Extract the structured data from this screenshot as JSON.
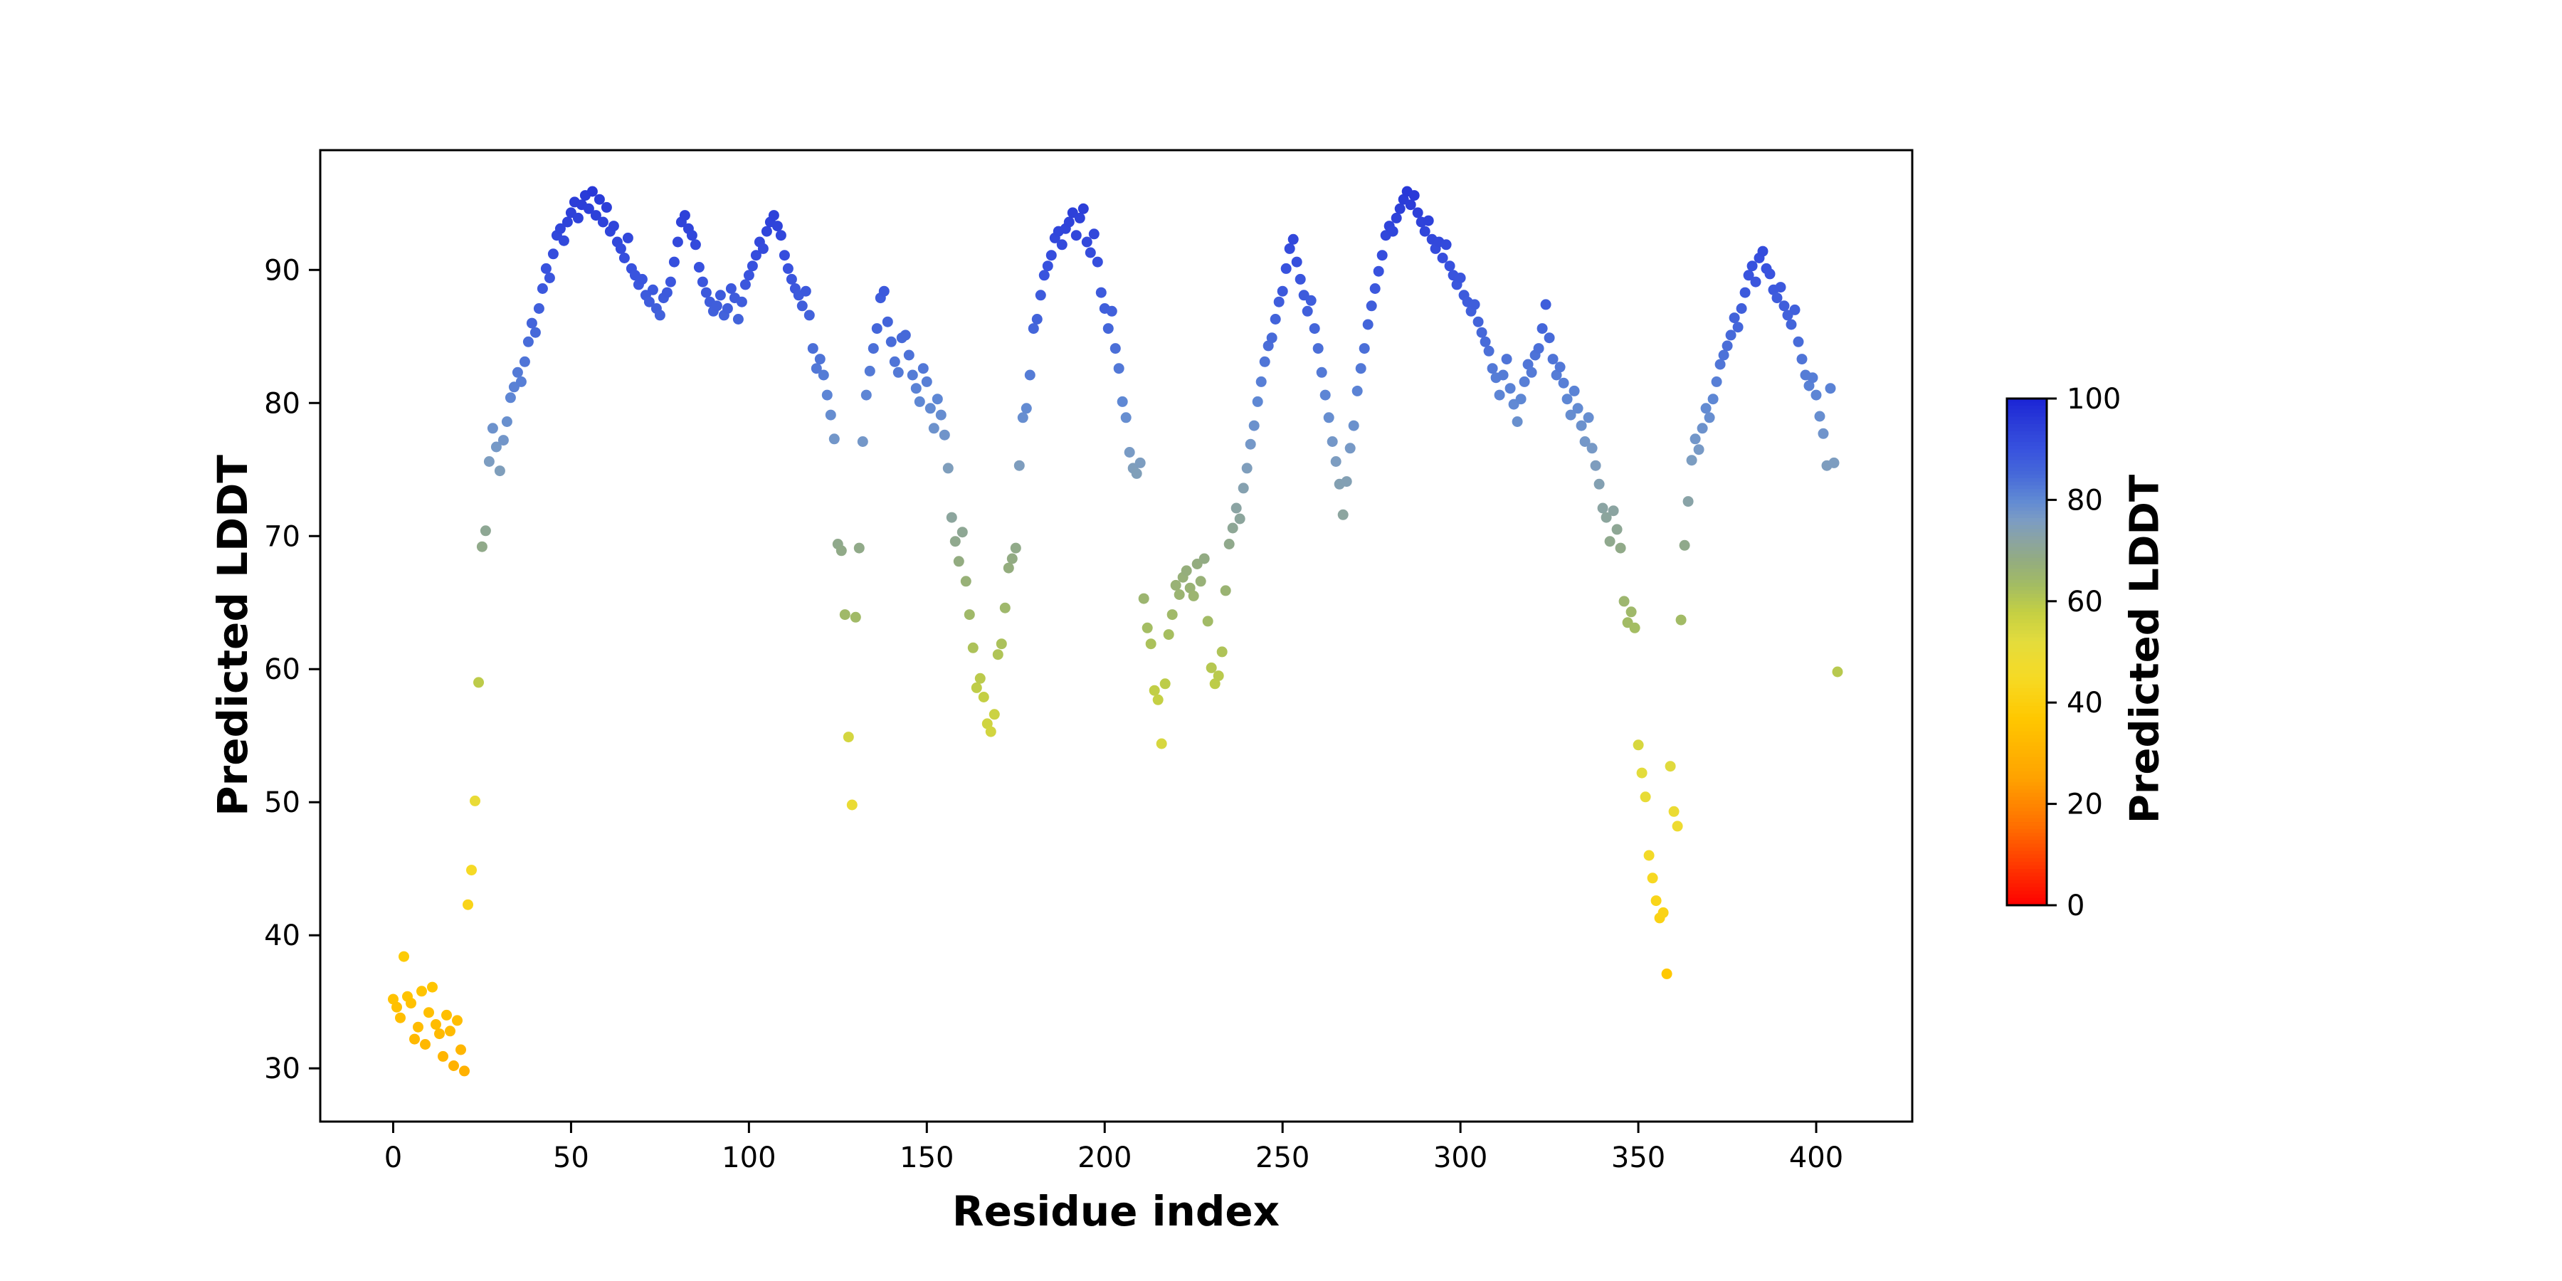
{
  "figure": {
    "background": "#ffffff",
    "text_color": "#000000",
    "spine_color": "#000000"
  },
  "chart_data": {
    "type": "scatter",
    "title": "",
    "xlabel": "Residue index",
    "ylabel": "Predicted LDDT",
    "x_is_index": true,
    "x_ticks": [
      0,
      50,
      100,
      150,
      200,
      250,
      300,
      350,
      400
    ],
    "y_ticks": [
      30,
      40,
      50,
      60,
      70,
      80,
      90
    ],
    "xlim": [
      -20.5,
      427
    ],
    "ylim": [
      26,
      99
    ],
    "grid": false,
    "legend": "none",
    "marker_radius_px": 7.5,
    "color_mapped_by": "y (Predicted LDDT value)",
    "colorbar": {
      "label": "Predicted LDDT",
      "min": 0,
      "max": 100,
      "ticks": [
        0,
        20,
        40,
        60,
        80,
        100
      ],
      "orientation": "vertical"
    },
    "colormap_stops": [
      [
        0,
        "#fe0000"
      ],
      [
        15,
        "#ff6b00"
      ],
      [
        25,
        "#ffa200"
      ],
      [
        37,
        "#ffc800"
      ],
      [
        45,
        "#f6da25"
      ],
      [
        52,
        "#e4dc3c"
      ],
      [
        58,
        "#c3cf44"
      ],
      [
        63,
        "#a4bd62"
      ],
      [
        68,
        "#93ac80"
      ],
      [
        72,
        "#8ba4a2"
      ],
      [
        76,
        "#7b9cc4"
      ],
      [
        80,
        "#6089d4"
      ],
      [
        85,
        "#4669d9"
      ],
      [
        90,
        "#3852de"
      ],
      [
        95,
        "#2b3dd8"
      ],
      [
        100,
        "#1b24d6"
      ]
    ],
    "y": [
      35.2,
      34.6,
      33.8,
      38.4,
      35.4,
      34.9,
      32.2,
      33.1,
      35.8,
      31.8,
      34.2,
      36.1,
      33.3,
      32.6,
      30.9,
      34.0,
      32.8,
      30.2,
      33.6,
      31.4,
      29.8,
      42.3,
      44.9,
      50.1,
      59.0,
      69.2,
      70.4,
      75.6,
      78.1,
      76.7,
      74.9,
      77.2,
      78.6,
      80.4,
      81.2,
      82.3,
      81.6,
      83.1,
      84.6,
      86.0,
      85.3,
      87.1,
      88.6,
      90.1,
      89.4,
      91.2,
      92.6,
      93.1,
      92.2,
      93.6,
      94.3,
      95.1,
      93.9,
      94.9,
      95.6,
      94.6,
      95.9,
      94.1,
      95.3,
      93.6,
      94.7,
      92.9,
      93.3,
      92.1,
      91.6,
      90.9,
      92.4,
      90.1,
      89.6,
      88.9,
      89.3,
      88.1,
      87.6,
      88.5,
      87.1,
      86.6,
      87.9,
      88.3,
      89.1,
      90.6,
      92.1,
      93.6,
      94.1,
      93.1,
      92.6,
      91.9,
      90.2,
      89.1,
      88.3,
      87.6,
      86.9,
      87.3,
      88.1,
      86.6,
      87.1,
      88.6,
      87.9,
      86.3,
      87.6,
      88.9,
      89.6,
      90.3,
      91.1,
      92.1,
      91.6,
      92.9,
      93.6,
      94.1,
      93.3,
      92.6,
      91.1,
      90.1,
      89.3,
      88.6,
      88.1,
      87.3,
      88.4,
      86.6,
      84.1,
      82.6,
      83.3,
      82.1,
      80.6,
      79.1,
      77.3,
      69.4,
      68.9,
      64.1,
      54.9,
      49.8,
      63.9,
      69.1,
      77.1,
      80.6,
      82.4,
      84.1,
      85.6,
      87.9,
      88.4,
      86.1,
      84.6,
      83.1,
      82.3,
      84.9,
      85.1,
      83.6,
      82.1,
      81.1,
      80.1,
      82.6,
      81.6,
      79.6,
      78.1,
      80.3,
      79.1,
      77.6,
      75.1,
      71.4,
      69.6,
      68.1,
      70.3,
      66.6,
      64.1,
      61.6,
      58.6,
      59.3,
      57.9,
      55.9,
      55.3,
      56.6,
      61.1,
      61.9,
      64.6,
      67.6,
      68.3,
      69.1,
      75.3,
      78.9,
      79.6,
      82.1,
      85.6,
      86.3,
      88.1,
      89.6,
      90.3,
      91.1,
      92.4,
      92.9,
      91.9,
      93.1,
      93.6,
      94.3,
      92.6,
      93.9,
      94.6,
      92.1,
      91.3,
      92.7,
      90.6,
      88.3,
      87.1,
      85.6,
      86.9,
      84.1,
      82.6,
      80.1,
      78.9,
      76.3,
      75.1,
      74.7,
      75.5,
      65.3,
      63.1,
      61.9,
      58.4,
      57.7,
      54.4,
      58.9,
      62.6,
      64.1,
      66.3,
      65.6,
      66.9,
      67.4,
      66.1,
      65.5,
      67.9,
      66.6,
      68.3,
      63.6,
      60.1,
      58.9,
      59.5,
      61.3,
      65.9,
      69.4,
      70.6,
      72.1,
      71.3,
      73.6,
      75.1,
      76.9,
      78.3,
      80.1,
      81.6,
      83.1,
      84.3,
      84.9,
      86.3,
      87.6,
      88.4,
      90.1,
      91.6,
      92.3,
      90.6,
      89.3,
      88.1,
      86.9,
      87.7,
      85.6,
      84.1,
      82.3,
      80.6,
      78.9,
      77.1,
      75.6,
      73.9,
      71.6,
      74.1,
      76.6,
      78.3,
      80.9,
      82.6,
      84.1,
      85.9,
      87.3,
      88.6,
      89.9,
      91.1,
      92.6,
      93.3,
      92.9,
      93.9,
      94.6,
      95.3,
      95.9,
      94.9,
      95.6,
      94.3,
      93.6,
      92.9,
      93.7,
      92.3,
      91.6,
      92.1,
      90.9,
      91.9,
      90.3,
      89.6,
      88.9,
      89.4,
      88.1,
      87.6,
      86.9,
      87.4,
      86.1,
      85.3,
      84.6,
      83.9,
      82.6,
      81.9,
      80.6,
      82.1,
      83.3,
      81.1,
      79.9,
      78.6,
      80.3,
      81.6,
      82.9,
      82.3,
      83.6,
      84.1,
      85.6,
      87.4,
      84.9,
      83.3,
      82.1,
      82.7,
      81.5,
      80.3,
      79.1,
      80.9,
      79.6,
      78.3,
      77.1,
      78.9,
      76.6,
      75.3,
      73.9,
      72.1,
      71.4,
      69.6,
      71.9,
      70.5,
      69.1,
      65.1,
      63.5,
      64.3,
      63.1,
      54.3,
      52.2,
      50.4,
      46.0,
      44.3,
      42.6,
      41.3,
      41.7,
      37.1,
      52.7,
      49.3,
      48.2,
      63.7,
      69.3,
      72.6,
      75.7,
      77.3,
      76.5,
      78.1,
      79.6,
      78.9,
      80.3,
      81.6,
      82.9,
      83.6,
      84.3,
      85.1,
      86.4,
      85.7,
      87.1,
      88.3,
      89.6,
      90.3,
      89.1,
      90.9,
      91.4,
      90.1,
      89.7,
      88.5,
      87.9,
      88.7,
      87.3,
      86.6,
      85.9,
      87.0,
      84.6,
      83.3,
      82.1,
      81.3,
      81.9,
      80.6,
      79.0,
      77.7,
      75.3,
      81.1,
      75.5,
      59.8
    ]
  }
}
